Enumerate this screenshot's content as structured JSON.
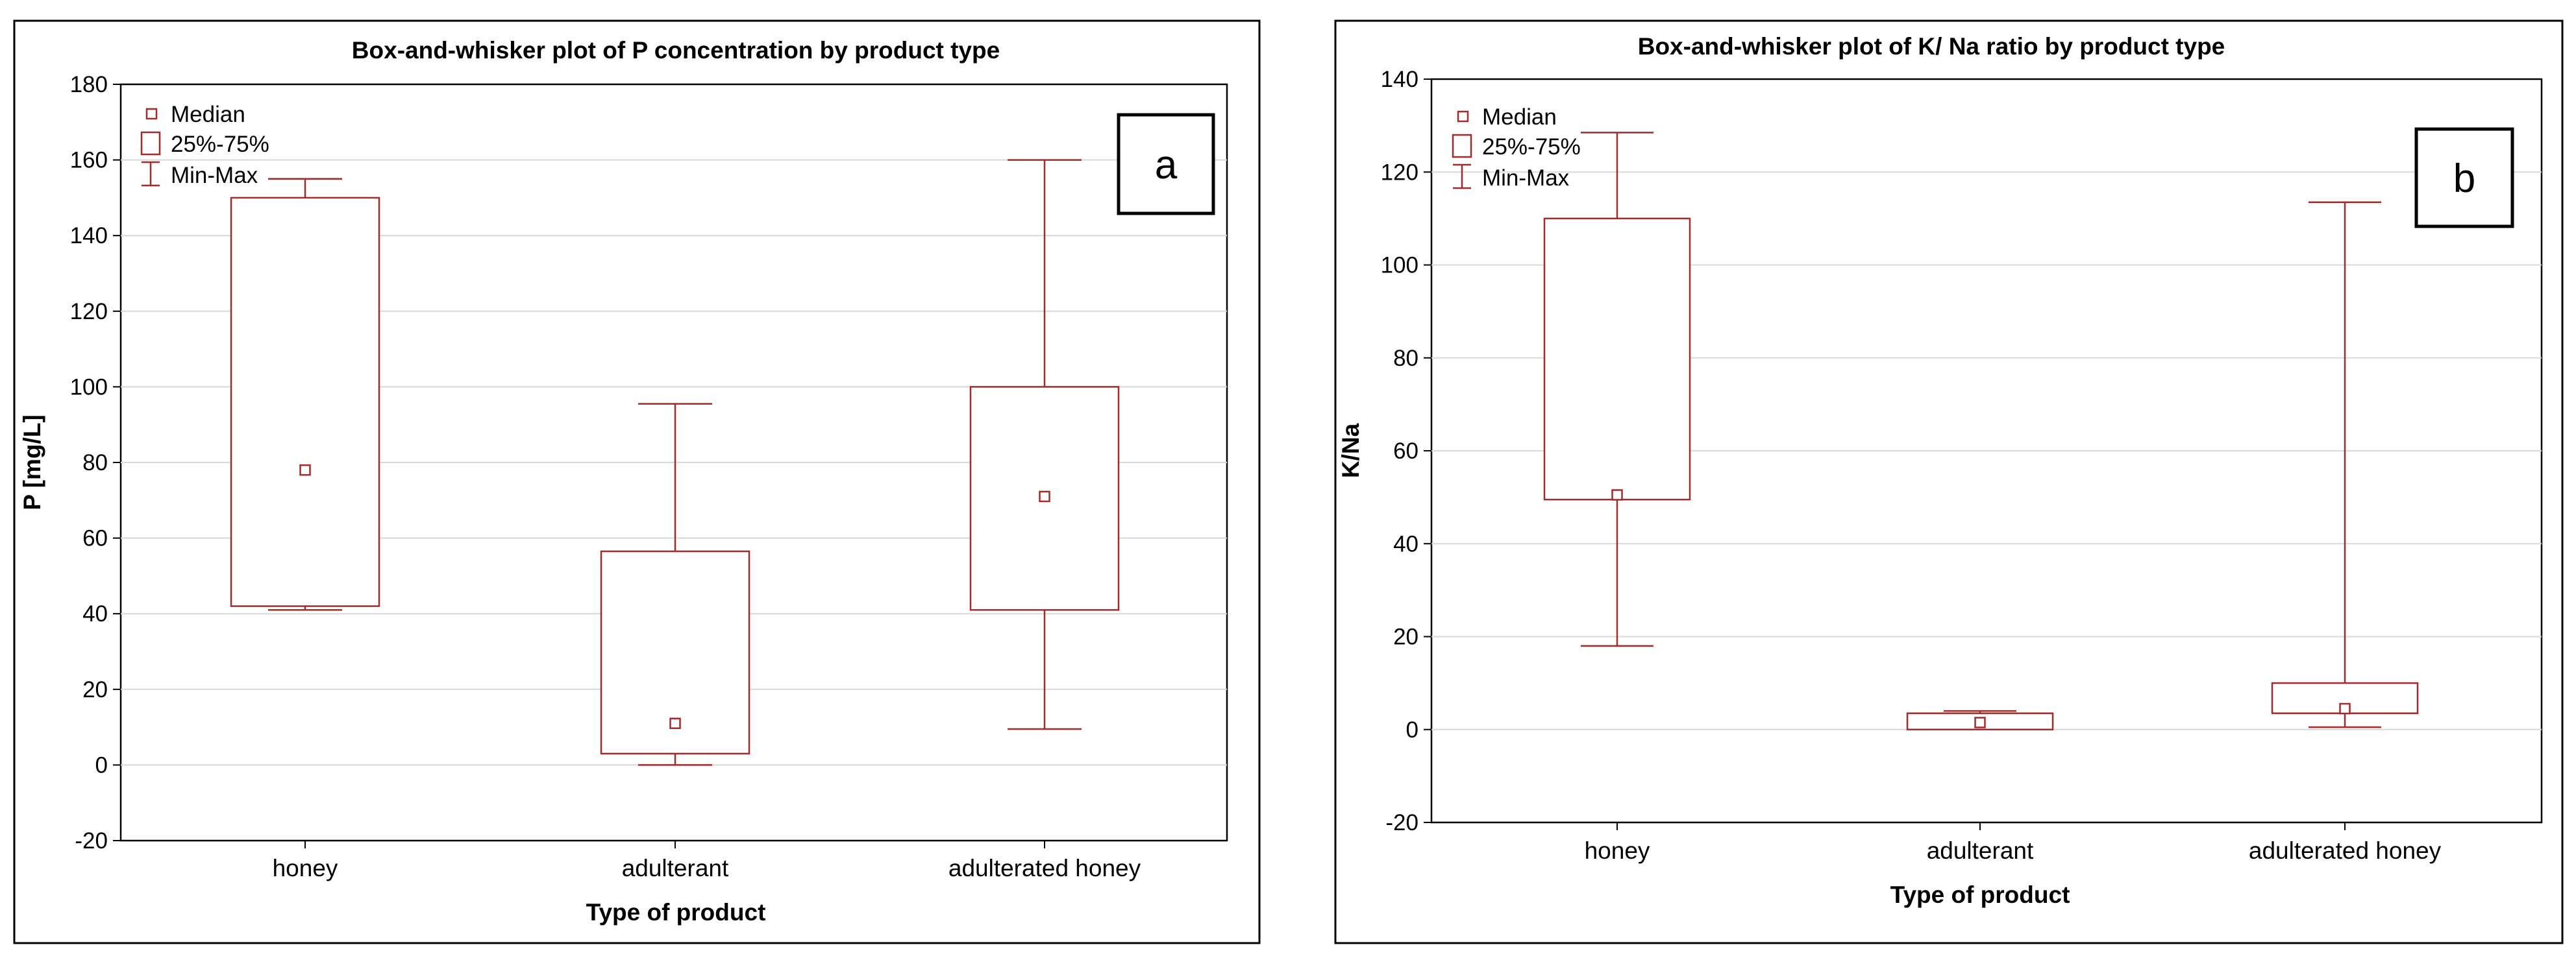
{
  "chart_data": [
    {
      "type": "box",
      "panel_label": "a",
      "title": "Box-and-whisker plot of P concentration by product type",
      "xlabel": "Type of product",
      "ylabel": "P [mg/L]",
      "ylim": [
        -20,
        180
      ],
      "yticks": [
        -20,
        0,
        20,
        40,
        60,
        80,
        100,
        120,
        140,
        160,
        180
      ],
      "grid": true,
      "legend_position": "top-left",
      "legend": [
        "Median",
        "25%-75%",
        "Min-Max"
      ],
      "categories": [
        "honey",
        "adulterant",
        "adulterated honey"
      ],
      "boxes": [
        {
          "min": 41,
          "q1": 42,
          "median": 78,
          "q3": 150,
          "max": 155
        },
        {
          "min": 0,
          "q1": 3,
          "median": 11,
          "q3": 56.5,
          "max": 95.5
        },
        {
          "min": 9.5,
          "q1": 41,
          "median": 71,
          "q3": 100,
          "max": 160
        }
      ]
    },
    {
      "type": "box",
      "panel_label": "b",
      "title": "Box-and-whisker plot of K/ Na ratio by product type",
      "xlabel": "Type of product",
      "ylabel": "K/Na",
      "ylim": [
        -20,
        140
      ],
      "yticks": [
        -20,
        0,
        20,
        40,
        60,
        80,
        100,
        120,
        140
      ],
      "grid": true,
      "legend_position": "top-left",
      "legend": [
        "Median",
        "25%-75%",
        "Min-Max"
      ],
      "categories": [
        "honey",
        "adulterant",
        "adulterated honey"
      ],
      "boxes": [
        {
          "min": 18,
          "q1": 49.5,
          "median": 50.5,
          "q3": 110,
          "max": 128.5
        },
        {
          "min": 0,
          "q1": 0,
          "median": 1.5,
          "q3": 3.5,
          "max": 4
        },
        {
          "min": 0.5,
          "q1": 3.5,
          "median": 4.5,
          "q3": 10,
          "max": 113.5
        }
      ]
    }
  ],
  "colors": {
    "box_stroke": "#a52a2a",
    "grid": "#d9d9d9",
    "frame": "#000000"
  }
}
